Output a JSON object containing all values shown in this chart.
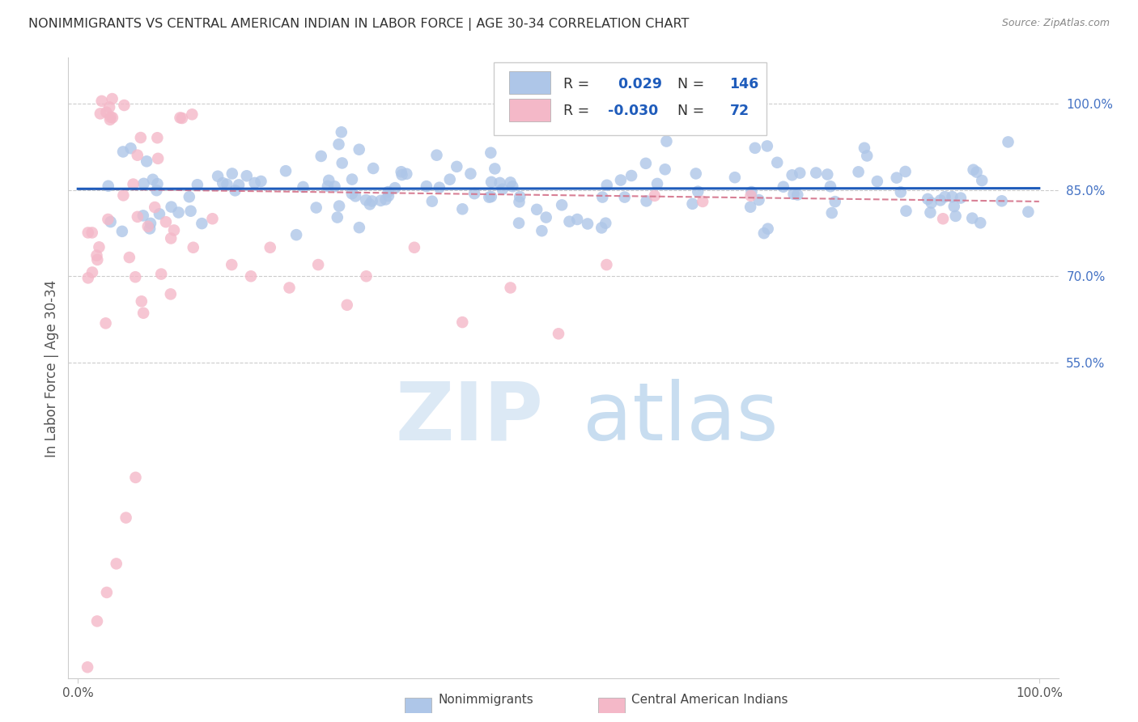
{
  "title": "NONIMMIGRANTS VS CENTRAL AMERICAN INDIAN IN LABOR FORCE | AGE 30-34 CORRELATION CHART",
  "source": "Source: ZipAtlas.com",
  "ylabel": "In Labor Force | Age 30-34",
  "xlim": [
    0.0,
    1.0
  ],
  "ylim": [
    0.0,
    1.08
  ],
  "yticks": [
    0.55,
    0.7,
    0.85,
    1.0
  ],
  "ytick_labels": [
    "55.0%",
    "70.0%",
    "85.0%",
    "100.0%"
  ],
  "xtick_labels": [
    "0.0%",
    "100.0%"
  ],
  "blue_R": 0.029,
  "blue_N": 146,
  "pink_R": -0.03,
  "pink_N": 72,
  "blue_color": "#aec6e8",
  "pink_color": "#f4b8c8",
  "blue_line_color": "#1f5cbb",
  "pink_line_color": "#d4728a",
  "watermark_zip_color": "#dce9f5",
  "watermark_atlas_color": "#c8ddf0",
  "grid_color": "#cccccc",
  "axis_color": "#cccccc",
  "title_color": "#333333",
  "source_color": "#888888",
  "ylabel_color": "#555555",
  "tick_color": "#555555",
  "right_tick_color": "#4472c4",
  "legend_text_color": "#333333",
  "legend_value_color": "#1f5cbb"
}
